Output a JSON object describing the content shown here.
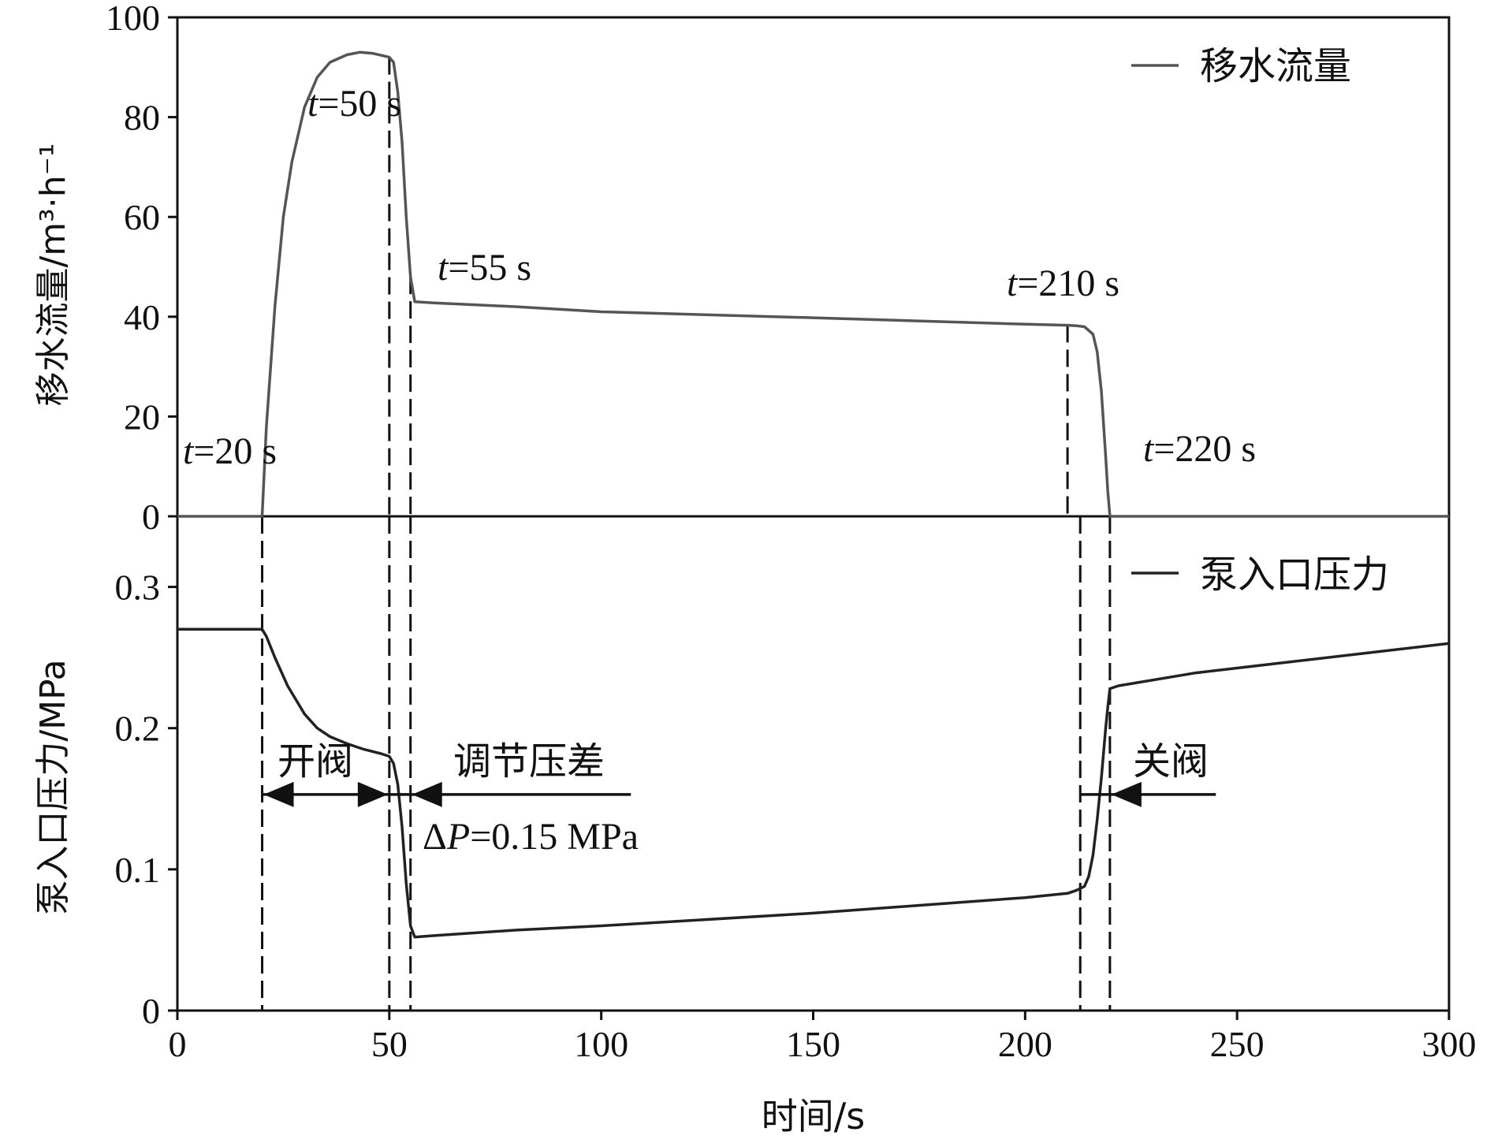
{
  "chart_data": [
    {
      "panel": "top",
      "type": "line",
      "ylabel": "移水流量/m³·h⁻¹",
      "ylim": [
        0,
        100
      ],
      "xlim": [
        0,
        300
      ],
      "yticks": [
        "0",
        "20",
        "40",
        "60",
        "80",
        "100"
      ],
      "ytick_values": [
        0,
        20,
        40,
        60,
        80,
        100
      ],
      "legend": "移水流量",
      "legend_position": "top-right",
      "line_color": "#555555",
      "series": [
        {
          "name": "移水流量",
          "x": [
            0,
            20,
            21,
            23,
            25,
            27,
            30,
            33,
            36,
            40,
            43,
            46,
            48,
            50,
            51,
            52,
            53,
            54,
            55,
            56,
            60,
            80,
            100,
            150,
            200,
            210,
            212,
            214,
            216,
            217,
            218,
            219,
            219.5,
            220,
            300
          ],
          "y": [
            0,
            0,
            18,
            42,
            60,
            71,
            82,
            88,
            91,
            92.5,
            93,
            92.8,
            92.4,
            92,
            91,
            85,
            75,
            60,
            48,
            43,
            42.8,
            42,
            41,
            39.8,
            38.5,
            38.3,
            38.2,
            38,
            36.5,
            33,
            25,
            12,
            5,
            0,
            0
          ]
        }
      ],
      "vlines": [
        20,
        50,
        55,
        210,
        220
      ],
      "annotations": [
        {
          "var": "t",
          "text": "=20 s",
          "x": 20
        },
        {
          "var": "t",
          "text": "=50 s",
          "x": 50
        },
        {
          "var": "t",
          "text": "=55 s",
          "x": 55
        },
        {
          "var": "t",
          "text": "=210 s",
          "x": 210
        },
        {
          "var": "t",
          "text": "=220 s",
          "x": 220
        }
      ]
    },
    {
      "panel": "bottom",
      "type": "line",
      "xlabel": "时间/s",
      "ylabel": "泵入口压力/MPa",
      "xlim": [
        0,
        300
      ],
      "ylim": [
        0,
        0.35
      ],
      "xticks": [
        "0",
        "50",
        "100",
        "150",
        "200",
        "250",
        "300"
      ],
      "xtick_values": [
        0,
        50,
        100,
        150,
        200,
        250,
        300
      ],
      "yticks": [
        "0",
        "0.1",
        "0.2",
        "0.3"
      ],
      "ytick_values": [
        0,
        0.1,
        0.2,
        0.3
      ],
      "legend": "泵入口压力",
      "legend_position": "top-right",
      "line_color": "#222222",
      "series": [
        {
          "name": "泵入口压力",
          "x": [
            0,
            20,
            21,
            23,
            26,
            30,
            33,
            36,
            40,
            44,
            48,
            50,
            51,
            52,
            53,
            54,
            55,
            56,
            60,
            80,
            100,
            150,
            200,
            210,
            212,
            214,
            215,
            216,
            217,
            218,
            219,
            219.5,
            220,
            222,
            240,
            260,
            280,
            300
          ],
          "y": [
            0.27,
            0.27,
            0.265,
            0.25,
            0.23,
            0.21,
            0.2,
            0.194,
            0.189,
            0.185,
            0.182,
            0.18,
            0.175,
            0.16,
            0.13,
            0.09,
            0.06,
            0.052,
            0.053,
            0.057,
            0.06,
            0.069,
            0.08,
            0.083,
            0.085,
            0.088,
            0.095,
            0.11,
            0.135,
            0.165,
            0.2,
            0.215,
            0.228,
            0.23,
            0.239,
            0.246,
            0.253,
            0.26
          ]
        }
      ],
      "vlines": [
        20,
        50,
        55,
        213,
        220
      ],
      "interval_labels": [
        {
          "text": "开阀",
          "from": 20,
          "to": 50,
          "y": 0.153
        },
        {
          "text": "调节压差",
          "from": 55,
          "to": 107,
          "y": 0.153
        },
        {
          "text": "关阀",
          "from": 213,
          "to": 245,
          "y": 0.153
        }
      ],
      "delta_label": {
        "prefix": "Δ",
        "var": "P",
        "text": "=0.15 MPa"
      }
    }
  ]
}
